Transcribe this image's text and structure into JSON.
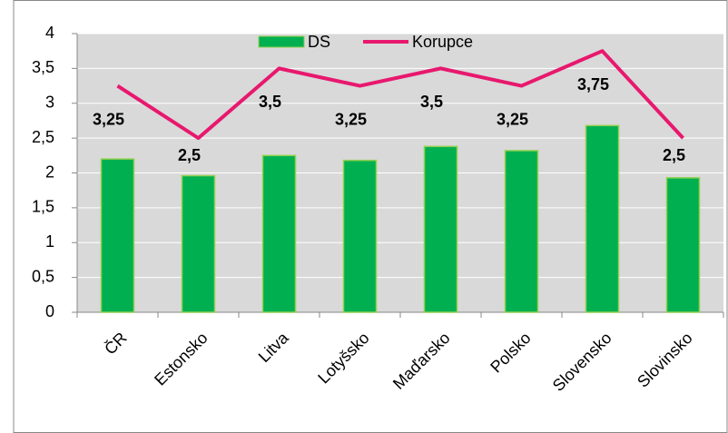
{
  "chart_data": {
    "type": "bar_line",
    "categories": [
      "ČR",
      "Estonsko",
      "Litva",
      "Lotyšsko",
      "Maďarsko",
      "Polsko",
      "Slovensko",
      "Slovinsko"
    ],
    "series": [
      {
        "name": "DS",
        "type": "bar",
        "color": "#00b050",
        "values": [
          2.2,
          1.96,
          2.25,
          2.18,
          2.38,
          2.32,
          2.68,
          1.93
        ]
      },
      {
        "name": "Korupce",
        "type": "line",
        "color": "#e8186e",
        "values": [
          3.25,
          2.5,
          3.5,
          3.25,
          3.5,
          3.25,
          3.75,
          2.5
        ],
        "value_labels": [
          "3,25",
          "2,5",
          "3,5",
          "3,25",
          "3,5",
          "3,25",
          "3,75",
          "2,5"
        ]
      }
    ],
    "ylim": [
      0,
      4
    ],
    "yticks": [
      0,
      {
        "value": 0.5,
        "label": "0,5"
      },
      1,
      {
        "value": 1.5,
        "label": "1,5"
      },
      2,
      {
        "value": 2.5,
        "label": "2,5"
      },
      3,
      {
        "value": 3.5,
        "label": "3,5"
      },
      4
    ],
    "grid": true,
    "legend": "top"
  }
}
